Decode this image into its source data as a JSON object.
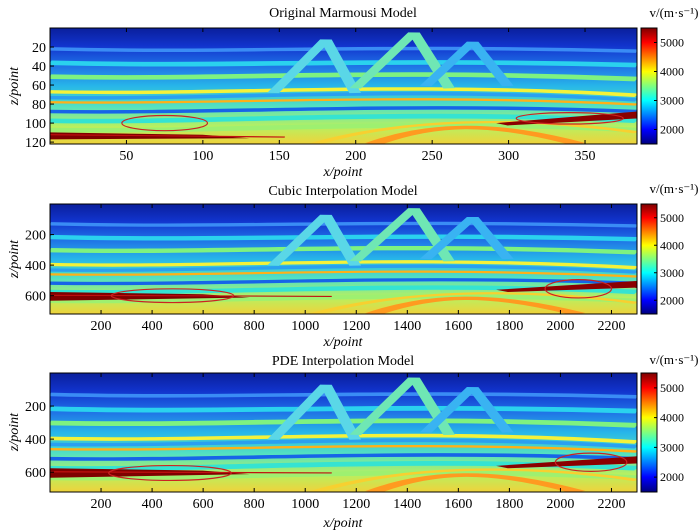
{
  "chart_data": [
    {
      "type": "heatmap",
      "title": "Original Marmousi Model",
      "xlabel": "x/point",
      "ylabel": "z/point",
      "xlim": [
        0,
        384
      ],
      "ylim": [
        122,
        0
      ],
      "xticks": [
        50,
        100,
        150,
        200,
        250,
        300,
        350
      ],
      "yticks": [
        20,
        40,
        60,
        80,
        100,
        120
      ],
      "colorbar": {
        "label": "v/(m·s⁻¹)",
        "range": [
          1500,
          5500
        ],
        "ticks": [
          2000,
          3000,
          4000,
          5000
        ]
      },
      "annotations": [
        {
          "shape": "ellipse",
          "center": [
            75,
            100
          ],
          "radius": [
            28,
            8
          ]
        },
        {
          "shape": "ellipse",
          "center": [
            340,
            95
          ],
          "radius": [
            35,
            6
          ]
        }
      ]
    },
    {
      "type": "heatmap",
      "title": "Cubic Interpolation Model",
      "xlabel": "x/point",
      "ylabel": "z/point",
      "xlim": [
        0,
        2300
      ],
      "ylim": [
        720,
        0
      ],
      "xticks": [
        200,
        400,
        600,
        800,
        1000,
        1200,
        1400,
        1600,
        1800,
        2000,
        2200
      ],
      "yticks": [
        200,
        400,
        600
      ],
      "colorbar": {
        "label": "v/(m·s⁻¹)",
        "range": [
          1500,
          5500
        ],
        "ticks": [
          2000,
          3000,
          4000,
          5000
        ]
      },
      "annotations": [
        {
          "shape": "ellipse",
          "center": [
            480,
            600
          ],
          "radius": [
            240,
            45
          ]
        },
        {
          "shape": "ellipse",
          "center": [
            2070,
            555
          ],
          "radius": [
            130,
            60
          ]
        }
      ]
    },
    {
      "type": "heatmap",
      "title": "PDE Interpolation Model",
      "xlabel": "x/point",
      "ylabel": "z/point",
      "xlim": [
        0,
        2300
      ],
      "ylim": [
        720,
        0
      ],
      "xticks": [
        200,
        400,
        600,
        800,
        1000,
        1200,
        1400,
        1600,
        1800,
        2000,
        2200
      ],
      "yticks": [
        200,
        400,
        600
      ],
      "colorbar": {
        "label": "v/(m·s⁻¹)",
        "range": [
          1500,
          5500
        ],
        "ticks": [
          2000,
          3000,
          4000,
          5000
        ]
      },
      "annotations": [
        {
          "shape": "ellipse",
          "center": [
            470,
            605
          ],
          "radius": [
            240,
            45
          ]
        },
        {
          "shape": "ellipse",
          "center": [
            2120,
            540
          ],
          "radius": [
            140,
            55
          ]
        }
      ]
    }
  ],
  "colors": {
    "jet": [
      "#00007f",
      "#0000ff",
      "#007fff",
      "#00ffff",
      "#7fff7f",
      "#ffff00",
      "#ff7f00",
      "#ff0000",
      "#7f0000"
    ],
    "annotation": "#cc2222"
  }
}
